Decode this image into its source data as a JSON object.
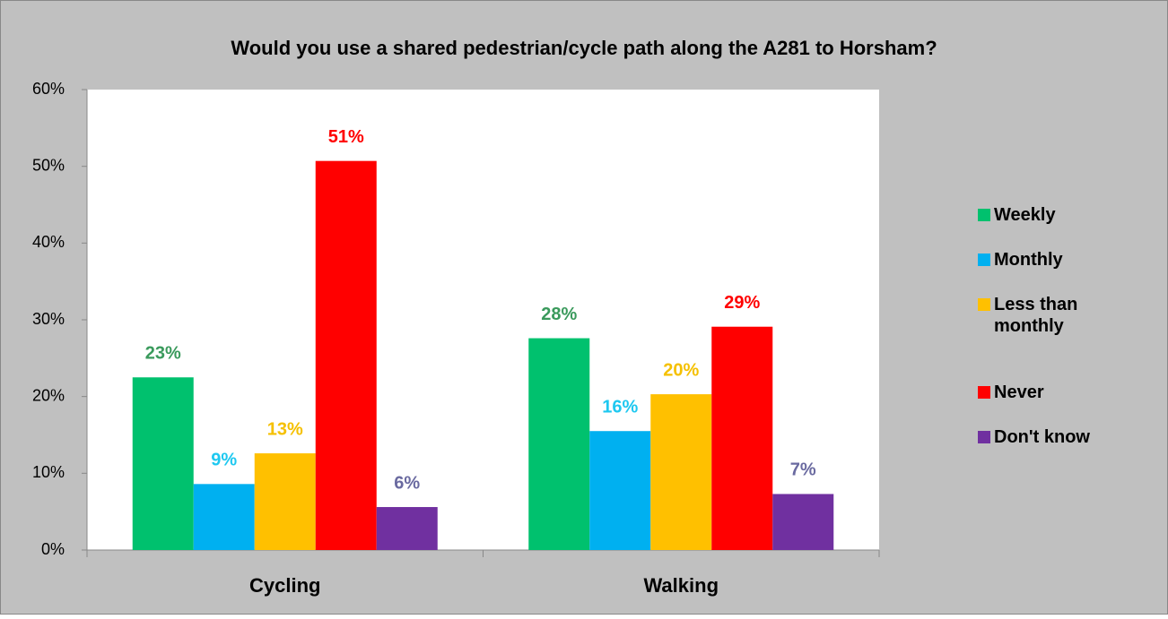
{
  "chart_data": {
    "type": "bar",
    "title": "Would you use a shared pedestrian/cycle path along the A281 to Horsham?",
    "categories": [
      "Cycling",
      "Walking"
    ],
    "series": [
      {
        "name": "Weekly",
        "color": "#00c16e",
        "label_color": "#3a9a5c",
        "values": [
          22.5,
          27.6
        ],
        "value_labels": [
          "23%",
          "28%"
        ]
      },
      {
        "name": "Monthly",
        "color": "#00b0f0",
        "label_color": "#1ec8f0",
        "values": [
          8.6,
          15.5
        ],
        "value_labels": [
          "9%",
          "16%"
        ]
      },
      {
        "name": "Less than monthly",
        "color": "#ffc000",
        "label_color": "#f5c000",
        "values": [
          12.6,
          20.3
        ],
        "value_labels": [
          "13%",
          "20%"
        ]
      },
      {
        "name": "Never",
        "color": "#ff0000",
        "label_color": "#ff0000",
        "values": [
          50.7,
          29.1
        ],
        "value_labels": [
          "51%",
          "29%"
        ]
      },
      {
        "name": "Don't know",
        "color": "#7030a0",
        "label_color": "#6a6aa0",
        "values": [
          5.6,
          7.3
        ],
        "value_labels": [
          "6%",
          "7%"
        ]
      }
    ],
    "ylim": [
      0,
      60
    ],
    "yticks": [
      {
        "value": 0,
        "label": "0%"
      },
      {
        "value": 10,
        "label": "10%"
      },
      {
        "value": 20,
        "label": "20%"
      },
      {
        "value": 30,
        "label": "30%"
      },
      {
        "value": 40,
        "label": "40%"
      },
      {
        "value": 50,
        "label": "50%"
      },
      {
        "value": 60,
        "label": "60%"
      }
    ],
    "grid": false,
    "legend": "right"
  }
}
